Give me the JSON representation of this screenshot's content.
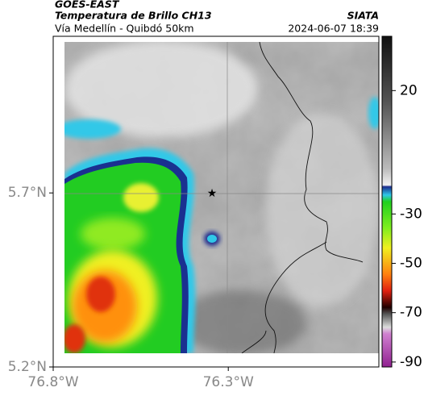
{
  "header": {
    "source": "GOES-EAST",
    "title": "Temperatura de Brillo CH13",
    "agency": "SIATA",
    "subtitle": "Vía Medellín - Quibdó 50km",
    "datetime": "2024-06-07 18:39"
  },
  "map": {
    "latlim": [
      5.2,
      6.15
    ],
    "lonlim": [
      -76.8,
      -75.87
    ],
    "latticks": [
      {
        "value": 5.7,
        "label": "5.7°N"
      },
      {
        "value": 5.2,
        "label": "5.2°N"
      }
    ],
    "lonticks": [
      {
        "value": -76.8,
        "label": "76.8°W"
      },
      {
        "value": -76.3,
        "label": "76.3°W"
      }
    ]
  },
  "colorbar": {
    "lim": [
      -92,
      42
    ],
    "ticks": [
      20,
      -30,
      -50,
      -70,
      -90
    ]
  }
}
